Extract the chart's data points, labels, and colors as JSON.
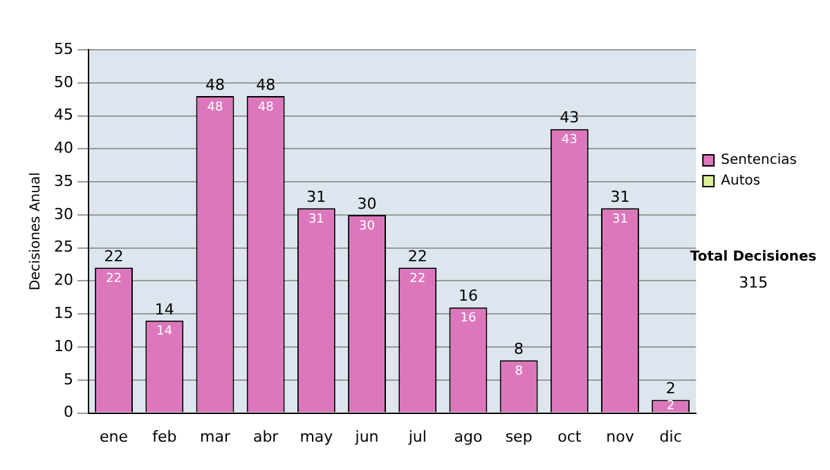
{
  "chart_data": {
    "type": "bar",
    "ylabel": "Decisiones Anual",
    "categories": [
      "ene",
      "feb",
      "mar",
      "abr",
      "may",
      "jun",
      "jul",
      "ago",
      "sep",
      "oct",
      "nov",
      "dic"
    ],
    "series": [
      {
        "name": "Sentencias",
        "color": "#dd77bb",
        "values": [
          22,
          14,
          48,
          48,
          31,
          30,
          22,
          16,
          8,
          43,
          31,
          2
        ]
      },
      {
        "name": "Autos",
        "color": "#ddee99",
        "values": [
          null,
          null,
          null,
          null,
          null,
          null,
          null,
          null,
          null,
          null,
          null,
          null
        ]
      }
    ],
    "stacked": true,
    "data_labels": true,
    "totals": [
      "22",
      "14",
      "48",
      "48",
      "31",
      "30",
      "22",
      "16",
      "8",
      "43",
      "31",
      "2"
    ],
    "ylim": [
      0,
      55
    ],
    "yticks": [
      0,
      5,
      10,
      15,
      20,
      25,
      30,
      35,
      40,
      45,
      50,
      55
    ],
    "grid": "y",
    "legend": "right",
    "annotations": [
      "Total Decisiones",
      "315"
    ]
  }
}
